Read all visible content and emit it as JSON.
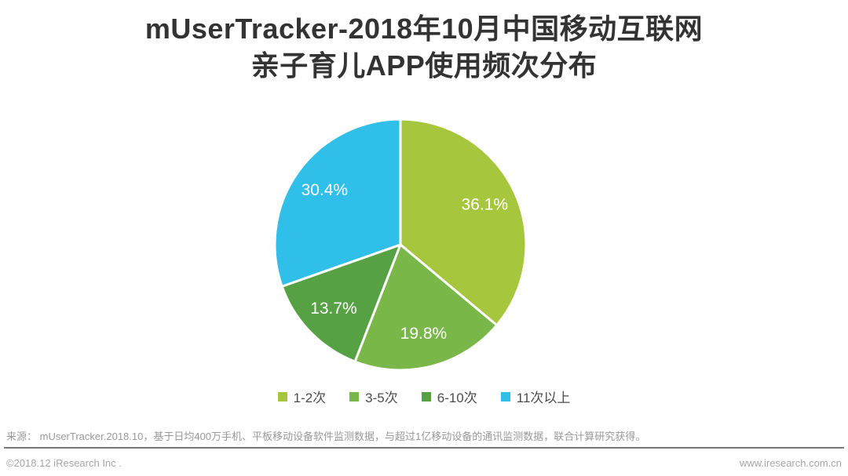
{
  "title": {
    "line1": "mUserTracker-2018年10月中国移动互联网",
    "line2": "亲子育儿APP使用频次分布"
  },
  "chart_data": {
    "type": "pie",
    "title": "mUserTracker-2018年10月中国移动互联网亲子育儿APP使用频次分布",
    "unit": "percent",
    "start_angle_deg": 0,
    "direction": "clockwise",
    "slices": [
      {
        "label": "1-2次",
        "value": 36.1,
        "display": "36.1%",
        "color": "#a6c73d"
      },
      {
        "label": "3-5次",
        "value": 19.8,
        "display": "19.8%",
        "color": "#78b748"
      },
      {
        "label": "6-10次",
        "value": 13.7,
        "display": "13.7%",
        "color": "#57a145"
      },
      {
        "label": "11次以上",
        "value": 30.4,
        "display": "30.4%",
        "color": "#30bfe9"
      }
    ],
    "slice_label_color": "#ffffff",
    "legend_position": "bottom"
  },
  "source_note": "来源： mUserTracker.2018.10，基于日均400万手机、平板移动设备软件监测数据，与超过1亿移动设备的通讯监测数据，联合计算研究获得。",
  "footer": {
    "left": "©2018.12 iResearch Inc .",
    "right": "www.iresearch.com.cn"
  }
}
